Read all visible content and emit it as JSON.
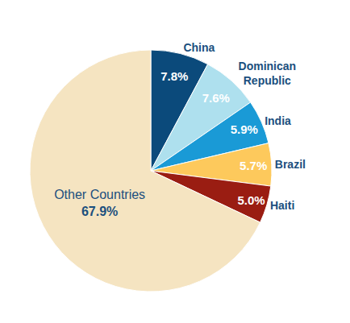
{
  "chart_data": {
    "type": "pie",
    "categories": [
      "China",
      "Dominican Republic",
      "India",
      "Brazil",
      "Haiti",
      "Other Countries"
    ],
    "values": [
      7.8,
      7.6,
      5.9,
      5.7,
      5.0,
      67.9
    ],
    "value_labels": [
      "7.8%",
      "7.6%",
      "5.9%",
      "5.7%",
      "5.0%",
      "67.9%"
    ],
    "colors": [
      "#0b4a7b",
      "#aee0ee",
      "#1a9ad6",
      "#fdc95c",
      "#9a1d12",
      "#f5e4c1"
    ],
    "data_labels": true
  }
}
